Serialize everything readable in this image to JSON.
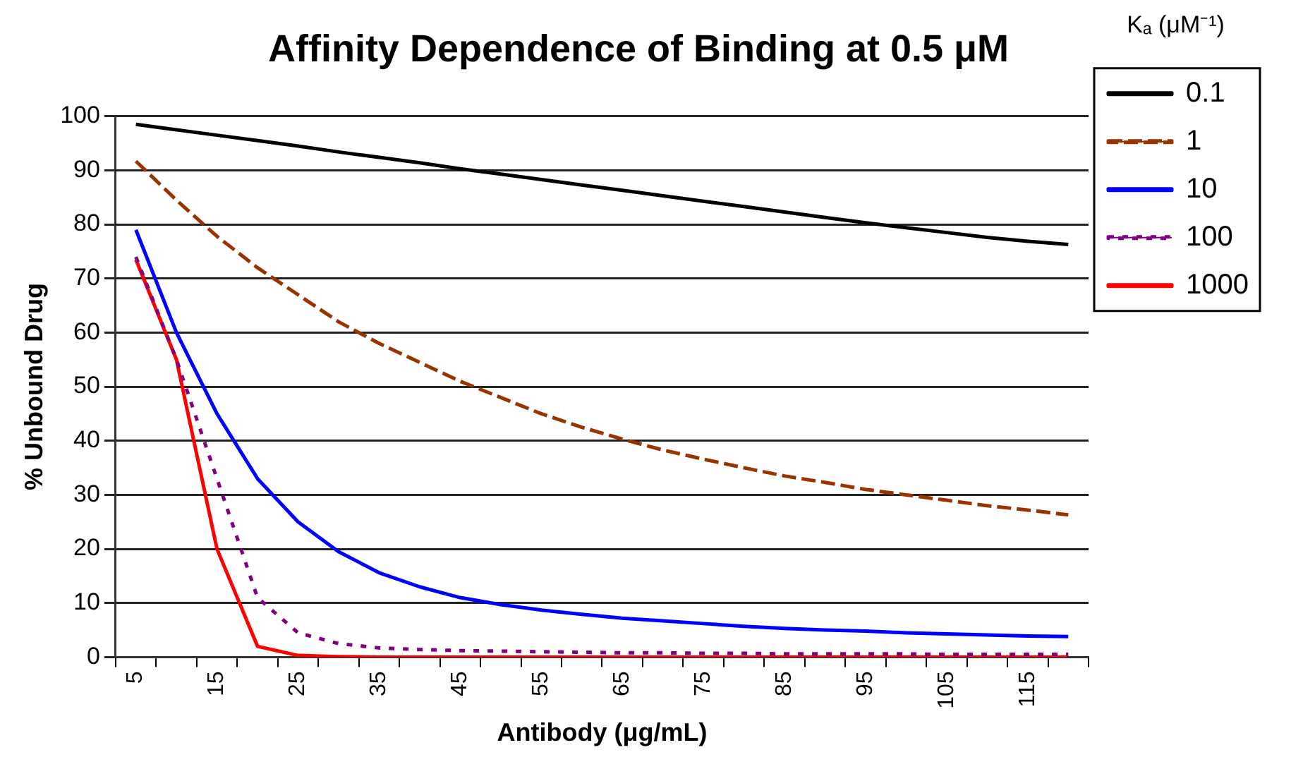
{
  "chart_data": {
    "type": "line",
    "title": "Affinity Dependence of Binding at 0.5 μM",
    "xlabel": "Antibody (μg/mL)",
    "ylabel": "% Unbound Drug",
    "legend_title": "Kₐ (μM⁻¹)",
    "legend": "right",
    "grid": "y",
    "marker": "none",
    "categories": [
      "5",
      null,
      "15",
      null,
      "25",
      null,
      "35",
      null,
      "45",
      null,
      "55",
      null,
      "65",
      null,
      "75",
      null,
      "85",
      null,
      "95",
      null,
      "105",
      null,
      "115",
      null
    ],
    "ylim": [
      0,
      100
    ],
    "yticks": [
      0,
      10,
      20,
      30,
      40,
      50,
      60,
      70,
      80,
      90,
      100
    ],
    "series": [
      {
        "name": "0.1",
        "color": "#000000",
        "line_style": "solid",
        "values": [
          98.5,
          97.5,
          96.5,
          95.5,
          94.5,
          93.4,
          92.4,
          91.4,
          90.3,
          89.3,
          88.3,
          87.3,
          86.3,
          85.3,
          84.3,
          83.3,
          82.3,
          81.3,
          80.3,
          79.4,
          78.5,
          77.6,
          76.9,
          76.3
        ]
      },
      {
        "name": "1",
        "color": "#993300",
        "line_style": "dashed",
        "values": [
          91.7,
          84.5,
          77.8,
          72,
          67,
          62,
          58,
          54.5,
          51,
          48,
          45,
          42.5,
          40.3,
          38.3,
          36.6,
          35,
          33.5,
          32.3,
          31,
          30,
          29,
          28,
          27.2,
          26.3
        ]
      },
      {
        "name": "10",
        "color": "#0000ff",
        "line_style": "solid",
        "values": [
          79,
          60,
          45,
          33,
          25,
          19.5,
          15.6,
          13,
          11,
          9.7,
          8.7,
          7.9,
          7.2,
          6.7,
          6.2,
          5.7,
          5.3,
          5,
          4.8,
          4.5,
          4.3,
          4.1,
          3.9,
          3.8
        ]
      },
      {
        "name": "100",
        "color": "#800080",
        "line_style": "dotted",
        "values": [
          74,
          55,
          33,
          11,
          4.5,
          2.5,
          1.7,
          1.4,
          1.2,
          1.1,
          1,
          0.9,
          0.8,
          0.8,
          0.7,
          0.7,
          0.6,
          0.6,
          0.6,
          0.6,
          0.5,
          0.5,
          0.5,
          0.5
        ]
      },
      {
        "name": "1000",
        "color": "#ff0000",
        "line_style": "solid",
        "values": [
          73.5,
          55,
          20,
          2,
          0.3,
          0.1,
          0,
          0,
          0,
          0,
          0,
          0,
          0,
          0,
          0,
          0,
          0,
          0,
          0,
          0,
          0,
          0,
          0,
          0
        ]
      }
    ]
  }
}
